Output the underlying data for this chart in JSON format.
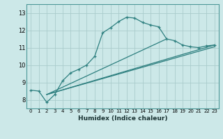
{
  "xlabel": "Humidex (Indice chaleur)",
  "ylabel": "",
  "bg_color": "#cce8e8",
  "grid_color": "#aacccc",
  "line_color": "#2d7f7f",
  "xlim": [
    -0.5,
    23.5
  ],
  "ylim": [
    7.5,
    13.5
  ],
  "xticks": [
    0,
    1,
    2,
    3,
    4,
    5,
    6,
    7,
    8,
    9,
    10,
    11,
    12,
    13,
    14,
    15,
    16,
    17,
    18,
    19,
    20,
    21,
    22,
    23
  ],
  "yticks": [
    8,
    9,
    10,
    11,
    12,
    13
  ],
  "curve1_x": [
    0,
    1,
    2,
    3,
    4,
    5,
    6,
    7,
    8,
    9,
    10,
    11,
    12,
    13,
    14,
    15,
    16,
    17,
    18,
    19,
    20,
    21,
    22,
    23
  ],
  "curve1_y": [
    8.55,
    8.5,
    7.85,
    8.3,
    9.1,
    9.55,
    9.75,
    10.0,
    10.5,
    11.85,
    12.15,
    12.5,
    12.75,
    12.7,
    12.45,
    12.3,
    12.2,
    11.5,
    11.4,
    11.15,
    11.05,
    11.0,
    11.1,
    11.15
  ],
  "curve2_x": [
    2,
    23
  ],
  "curve2_y": [
    8.3,
    11.15
  ],
  "curve3_x": [
    2,
    23
  ],
  "curve3_y": [
    8.3,
    11.05
  ],
  "curve4_x": [
    2,
    17
  ],
  "curve4_y": [
    8.3,
    11.5
  ]
}
